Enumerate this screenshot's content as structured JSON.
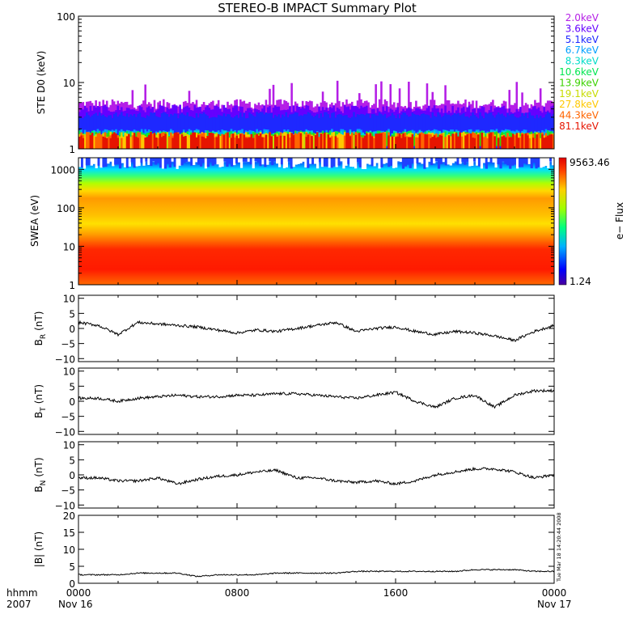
{
  "title": "STEREO-B IMPACT Summary Plot",
  "bottom_labels": {
    "row1_left": "hhmm",
    "row2_left": "2007",
    "start_date": "Nov 16",
    "end_date": "Nov 17"
  },
  "timestamp": "Tue Mar 18 14:20:44 2008",
  "colors": {
    "line": "#000000",
    "energy_colors": [
      "#b41ee6",
      "#6400ff",
      "#1e28ff",
      "#00a0ff",
      "#00dcc8",
      "#00e650",
      "#3cd200",
      "#c8dc00",
      "#ffc800",
      "#ff6400",
      "#e61400"
    ]
  },
  "chart_data": [
    {
      "type": "line",
      "panel": "ste",
      "ylabel": "STE D0 (keV)",
      "yscale": "log",
      "ylim": [
        1,
        100
      ],
      "yticks": [
        "1",
        "10",
        "100"
      ],
      "legend_position": "right",
      "series": [
        {
          "name": "2.0keV",
          "band": [
            2.0,
            5.6
          ]
        },
        {
          "name": "3.6keV",
          "band": [
            2.0,
            4.6
          ]
        },
        {
          "name": "5.1keV",
          "band": [
            2.0,
            3.6
          ]
        },
        {
          "name": "6.7keV",
          "band": [
            1.5,
            2.0
          ]
        },
        {
          "name": "8.3keV",
          "band": [
            1.3,
            1.9
          ]
        },
        {
          "name": "10.6keV",
          "band": [
            1.1,
            1.9
          ]
        },
        {
          "name": "13.9keV",
          "band": [
            1.1,
            1.8
          ]
        },
        {
          "name": "19.1keV",
          "band": [
            1.0,
            1.8
          ]
        },
        {
          "name": "27.8keV",
          "band": [
            1.0,
            1.8
          ]
        },
        {
          "name": "44.3keV",
          "band": [
            1.0,
            1.8
          ]
        },
        {
          "name": "81.1keV",
          "band": [
            1.0,
            1.8
          ]
        }
      ]
    },
    {
      "type": "heatmap",
      "panel": "swea",
      "ylabel": "SWEA (eV)",
      "yscale": "log",
      "ylim": [
        1,
        2000
      ],
      "yticks": [
        "1",
        "10",
        "100",
        "1000"
      ],
      "colorbar": {
        "max": "9563.46",
        "min": "1.24",
        "label": "e− Flux"
      }
    },
    {
      "type": "line",
      "panel": "br",
      "ylabel_main": "B",
      "ylabel_sub": "R",
      "ylabel_unit": "(nT)",
      "ylim": [
        -11,
        11
      ],
      "yticks": [
        "10",
        "5",
        "0",
        "−5",
        "−10"
      ],
      "x_hours": [
        0,
        1,
        2,
        3,
        4,
        5,
        6,
        7,
        8,
        9,
        10,
        11,
        12,
        13,
        14,
        15,
        16,
        17,
        18,
        19,
        20,
        21,
        22,
        23,
        24
      ],
      "values": [
        2,
        1,
        -2,
        2,
        1.5,
        1,
        0.5,
        -0.5,
        -1.5,
        -0.5,
        -1,
        0,
        1,
        2,
        -1,
        0,
        0.5,
        -1,
        -2,
        -1,
        -1.5,
        -2.5,
        -4,
        -1,
        1
      ]
    },
    {
      "type": "line",
      "panel": "bt",
      "ylabel_main": "B",
      "ylabel_sub": "T",
      "ylabel_unit": "(nT)",
      "ylim": [
        -11,
        11
      ],
      "yticks": [
        "10",
        "5",
        "0",
        "−5",
        "−10"
      ],
      "x_hours": [
        0,
        1,
        2,
        3,
        4,
        5,
        6,
        7,
        8,
        9,
        10,
        11,
        12,
        13,
        14,
        15,
        16,
        17,
        18,
        19,
        20,
        21,
        22,
        23,
        24
      ],
      "values": [
        1,
        1,
        0,
        1,
        1.5,
        2,
        1.5,
        1.5,
        2,
        2,
        2.5,
        2.5,
        2,
        1.5,
        1,
        2,
        3,
        0,
        -2,
        1,
        2,
        -2,
        2,
        3.5,
        3.5
      ]
    },
    {
      "type": "line",
      "panel": "bn",
      "ylabel_main": "B",
      "ylabel_sub": "N",
      "ylabel_unit": "(nT)",
      "ylim": [
        -11,
        11
      ],
      "yticks": [
        "10",
        "5",
        "0",
        "−5",
        "−10"
      ],
      "x_hours": [
        0,
        1,
        2,
        3,
        4,
        5,
        6,
        7,
        8,
        9,
        10,
        11,
        12,
        13,
        14,
        15,
        16,
        17,
        18,
        19,
        20,
        21,
        22,
        23,
        24
      ],
      "values": [
        -1,
        -1,
        -2,
        -2,
        -1,
        -3,
        -1.5,
        -0.5,
        0,
        1,
        1.5,
        -1,
        -1,
        -2,
        -2.5,
        -2,
        -3,
        -2,
        0,
        1,
        2,
        2,
        1,
        -1,
        0
      ]
    },
    {
      "type": "line",
      "panel": "bmag",
      "ylabel": "|B| (nT)",
      "ylim": [
        0,
        20
      ],
      "yticks": [
        "20",
        "15",
        "10",
        "5",
        "0"
      ],
      "x_hours": [
        0,
        1,
        2,
        3,
        4,
        5,
        6,
        7,
        8,
        9,
        10,
        11,
        12,
        13,
        14,
        15,
        16,
        17,
        18,
        19,
        20,
        21,
        22,
        23,
        24
      ],
      "values": [
        2.5,
        2.5,
        2.5,
        3,
        3,
        3,
        2,
        2.5,
        2.5,
        2.5,
        3,
        3,
        3,
        3,
        3.5,
        3.5,
        3.5,
        3.5,
        3.5,
        3.5,
        4,
        4,
        4,
        3.5,
        3.5
      ]
    }
  ],
  "x_axis": {
    "tick_labels": [
      "0000",
      "0800",
      "1600",
      "0000"
    ],
    "range_hours": [
      0,
      24
    ]
  }
}
